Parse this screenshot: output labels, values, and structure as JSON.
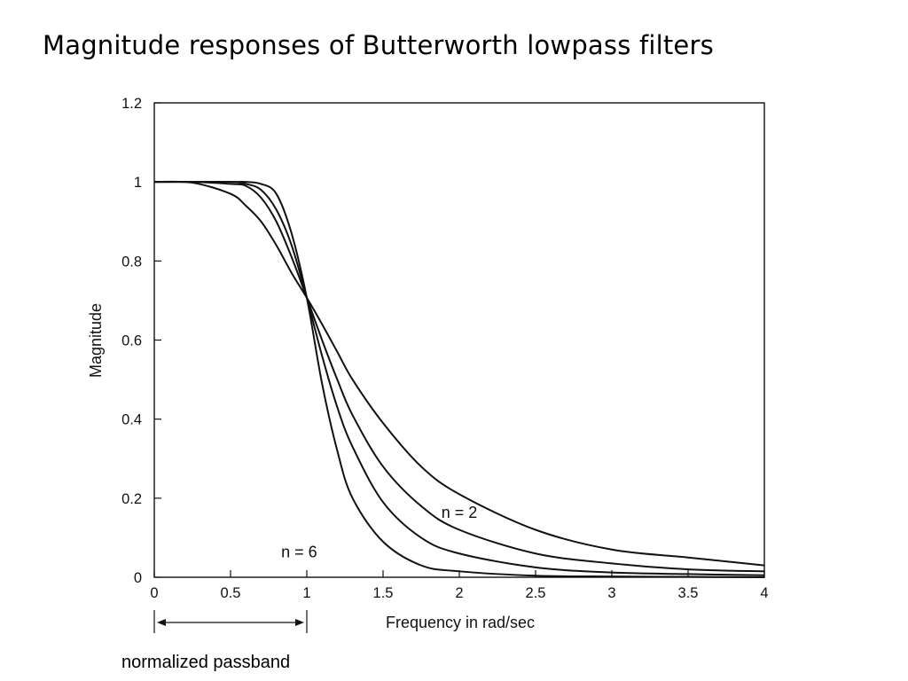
{
  "slide": {
    "title": "Magnitude responses of Butterworth lowpass filters",
    "caption": "normalized passband"
  },
  "chart_data": {
    "type": "line",
    "title": "",
    "xlabel": "Frequency in rad/sec",
    "ylabel": "Magnitude",
    "xlim": [
      0,
      4
    ],
    "ylim": [
      0,
      1.2
    ],
    "xticks": [
      0,
      0.5,
      1,
      1.5,
      2,
      2.5,
      3,
      3.5,
      4
    ],
    "xtick_labels": [
      "0",
      "0.5",
      "1",
      "1.5",
      "2",
      "2.5",
      "3",
      "3.5",
      "4"
    ],
    "yticks": [
      0,
      0.2,
      0.4,
      0.6,
      0.8,
      1,
      1.2
    ],
    "ytick_labels": [
      "0",
      "0.2",
      "0.4",
      "0.6",
      "0.8",
      "1",
      "1.2"
    ],
    "grid": false,
    "series": [
      {
        "order": 2,
        "x": [
          0,
          0.25,
          0.5,
          0.6,
          0.7,
          0.8,
          0.9,
          1.0,
          1.1,
          1.2,
          1.3,
          1.5,
          1.75,
          2.0,
          2.5,
          3.0,
          3.5,
          4.0
        ],
        "values": [
          1.0,
          0.998,
          0.97,
          0.94,
          0.9,
          0.84,
          0.77,
          0.707,
          0.64,
          0.57,
          0.5,
          0.39,
          0.28,
          0.21,
          0.12,
          0.07,
          0.05,
          0.03
        ]
      },
      {
        "order": 3,
        "x": [
          0,
          0.25,
          0.5,
          0.6,
          0.7,
          0.8,
          0.9,
          1.0,
          1.1,
          1.2,
          1.3,
          1.5,
          1.75,
          2.0,
          2.5,
          3.0,
          3.5,
          4.0
        ],
        "values": [
          1.0,
          1.0,
          0.995,
          0.99,
          0.96,
          0.9,
          0.81,
          0.707,
          0.6,
          0.5,
          0.41,
          0.28,
          0.18,
          0.12,
          0.06,
          0.035,
          0.02,
          0.015
        ]
      },
      {
        "order": 4,
        "x": [
          0,
          0.25,
          0.5,
          0.6,
          0.7,
          0.8,
          0.9,
          1.0,
          1.1,
          1.2,
          1.3,
          1.5,
          1.75,
          2.0,
          2.5,
          3.0,
          3.5,
          4.0
        ],
        "values": [
          1.0,
          1.0,
          1.0,
          0.995,
          0.98,
          0.93,
          0.84,
          0.707,
          0.56,
          0.43,
          0.33,
          0.19,
          0.1,
          0.06,
          0.025,
          0.012,
          0.008,
          0.005
        ]
      },
      {
        "order": 6,
        "x": [
          0,
          0.25,
          0.5,
          0.6,
          0.7,
          0.8,
          0.9,
          1.0,
          1.1,
          1.2,
          1.3,
          1.5,
          1.75,
          2.0,
          2.5,
          3.0,
          3.5,
          4.0
        ],
        "values": [
          1.0,
          1.0,
          1.0,
          1.0,
          0.995,
          0.97,
          0.87,
          0.707,
          0.49,
          0.32,
          0.2,
          0.09,
          0.03,
          0.015,
          0.004,
          0.002,
          0.001,
          0.0
        ]
      }
    ],
    "annotations": [
      {
        "text": "n = 2",
        "x": 2.0,
        "y": 0.15
      },
      {
        "text": "n = 6",
        "x": 0.95,
        "y": 0.05
      }
    ],
    "passband": {
      "x_start": 0,
      "x_end": 1
    }
  }
}
